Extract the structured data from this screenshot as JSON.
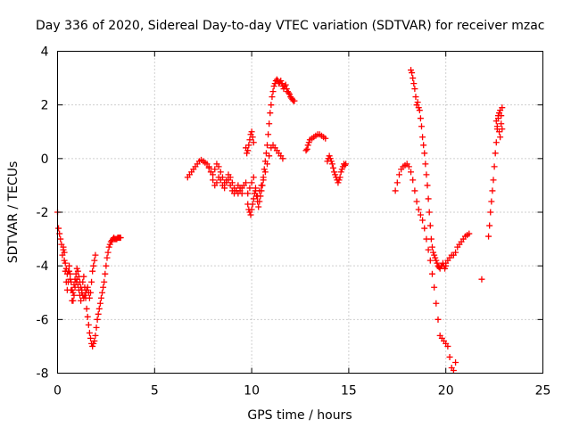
{
  "chart_data": {
    "type": "scatter",
    "title": "Day 336 of 2020, Sidereal Day-to-day VTEC variation (SDTVAR) for receiver mzac",
    "xlabel": "GPS time / hours",
    "ylabel": "SDTVAR / TECUs",
    "xlim": [
      0,
      25
    ],
    "ylim": [
      -8,
      4
    ],
    "x_ticks": [
      0,
      5,
      10,
      15,
      20,
      25
    ],
    "y_ticks": [
      -8,
      -6,
      -4,
      -2,
      0,
      2,
      4
    ],
    "x_tick_labels": [
      "0",
      "5",
      "10",
      "15",
      "20",
      "25"
    ],
    "y_tick_labels": [
      "-8",
      "-6",
      "-4",
      "-2",
      "0",
      "2",
      "4"
    ],
    "grid": true,
    "marker": "plus",
    "color": "#ff0000",
    "series": [
      {
        "x": [
          0.0,
          0.05,
          0.1,
          0.15,
          0.2,
          0.25,
          0.3,
          0.35,
          0.4,
          0.45,
          0.5,
          0.55,
          0.6,
          0.65,
          0.7,
          0.75,
          0.8,
          0.85,
          0.9,
          0.95,
          1.0,
          1.05,
          1.1,
          1.15,
          1.2,
          1.25,
          1.3,
          1.35,
          1.4,
          1.45,
          1.5,
          1.55,
          1.6,
          1.65,
          1.7,
          1.75,
          1.8,
          1.85,
          1.9,
          1.95,
          2.0,
          2.05,
          2.1,
          2.15,
          2.2,
          2.25,
          2.3,
          2.35,
          2.4,
          2.45,
          2.5,
          2.55,
          2.6,
          2.65,
          2.7,
          2.75,
          2.8,
          2.85,
          2.9,
          2.95,
          3.0,
          3.05,
          3.1,
          3.15,
          3.2,
          3.25
        ],
        "y": [
          -2.0,
          -2.6,
          -2.8,
          -3.0,
          -3.2,
          -3.6,
          -3.4,
          -3.8,
          -4.2,
          -4.6,
          -4.9,
          -4.6,
          -4.2,
          -4.5,
          -4.9,
          -5.3,
          -5.3,
          -5.1,
          -4.8,
          -4.6,
          -4.5,
          -4.7,
          -4.9,
          -5.1,
          -5.3,
          -5.0,
          -4.6,
          -4.4,
          -4.8,
          -5.2,
          -5.6,
          -5.9,
          -6.2,
          -6.5,
          -6.7,
          -6.9,
          -7.0,
          -6.9,
          -6.8,
          -6.6,
          -6.3,
          -6.0,
          -5.8,
          -5.6,
          -5.4,
          -5.2,
          -5.0,
          -4.8,
          -4.6,
          -4.3,
          -4.0,
          -3.7,
          -3.5,
          -3.3,
          -3.2,
          -3.1,
          -3.05,
          -3.0,
          -2.95,
          -3.0,
          -3.0,
          -3.0,
          -2.95,
          -2.95,
          -2.95,
          -2.95
        ]
      },
      {
        "x": [
          0.3,
          0.35,
          0.4,
          0.45,
          0.5,
          0.55,
          0.6,
          0.65,
          0.7,
          0.75,
          0.8,
          0.85,
          0.9,
          0.95,
          1.0,
          1.05,
          1.1,
          1.15,
          1.2,
          1.25,
          1.3,
          1.35,
          1.4,
          1.45,
          1.5,
          1.55,
          1.6,
          1.65,
          1.7,
          1.75,
          1.8,
          1.85,
          1.9,
          1.95
        ],
        "y": [
          -3.3,
          -3.5,
          -3.9,
          -4.1,
          -4.3,
          -4.2,
          -4.0,
          -4.3,
          -4.6,
          -4.9,
          -5.0,
          -4.7,
          -4.5,
          -4.3,
          -4.1,
          -4.2,
          -4.4,
          -4.6,
          -4.8,
          -4.9,
          -5.1,
          -5.2,
          -5.1,
          -5.0,
          -4.9,
          -4.8,
          -5.0,
          -5.2,
          -5.0,
          -4.6,
          -4.2,
          -4.0,
          -3.8,
          -3.6
        ]
      },
      {
        "x": [
          6.7,
          6.8,
          6.9,
          7.0,
          7.1,
          7.2,
          7.3,
          7.4,
          7.5,
          7.6,
          7.7,
          7.8,
          7.9,
          8.0,
          8.1,
          8.2,
          8.3,
          8.4,
          8.5,
          8.6,
          8.7,
          8.8,
          8.9,
          9.0,
          9.1,
          9.2,
          9.3,
          9.4,
          9.5,
          9.6,
          9.7
        ],
        "y": [
          -0.7,
          -0.6,
          -0.5,
          -0.4,
          -0.3,
          -0.2,
          -0.1,
          -0.05,
          -0.1,
          -0.15,
          -0.2,
          -0.35,
          -0.5,
          -0.6,
          -0.4,
          -0.2,
          -0.3,
          -0.5,
          -0.7,
          -0.9,
          -0.8,
          -0.6,
          -0.7,
          -0.9,
          -1.1,
          -1.2,
          -1.3,
          -1.2,
          -1.1,
          -1.0,
          -0.9
        ]
      },
      {
        "x": [
          7.8,
          7.9,
          8.0,
          8.1,
          8.2,
          8.3,
          8.4,
          8.5,
          8.6,
          8.7,
          8.8,
          8.9,
          9.0,
          9.1,
          9.2,
          9.3,
          9.4,
          9.5
        ],
        "y": [
          -0.3,
          -0.5,
          -0.8,
          -1.0,
          -0.9,
          -0.7,
          -0.8,
          -1.0,
          -1.1,
          -0.9,
          -0.8,
          -1.0,
          -1.2,
          -1.3,
          -1.2,
          -1.0,
          -1.1,
          -1.3
        ]
      },
      {
        "x": [
          9.8,
          9.85,
          9.9,
          9.95,
          10.0,
          10.05,
          10.1,
          10.15,
          10.2,
          10.25,
          10.3,
          10.35,
          10.4,
          10.45,
          10.5,
          10.55,
          10.6,
          10.65,
          10.7,
          10.75,
          10.8,
          10.85,
          10.9,
          10.95,
          11.0,
          11.05,
          11.1,
          11.15,
          11.2,
          11.25,
          11.3,
          11.35,
          11.4,
          11.45,
          11.5,
          11.55,
          11.6,
          11.65,
          11.7,
          11.75,
          11.8,
          11.85,
          11.9,
          11.95,
          12.0,
          12.05,
          12.1,
          12.15,
          12.2
        ],
        "y": [
          -1.7,
          -1.9,
          -2.0,
          -2.1,
          -1.9,
          -1.7,
          -1.5,
          -1.3,
          -1.2,
          -1.4,
          -1.6,
          -1.8,
          -1.6,
          -1.4,
          -1.2,
          -1.0,
          -0.7,
          -0.4,
          -0.1,
          0.2,
          0.5,
          0.9,
          1.3,
          1.7,
          2.0,
          2.3,
          2.5,
          2.7,
          2.8,
          2.9,
          2.95,
          2.9,
          2.8,
          2.85,
          2.9,
          2.8,
          2.7,
          2.6,
          2.7,
          2.75,
          2.6,
          2.5,
          2.45,
          2.4,
          2.3,
          2.25,
          2.2,
          2.15,
          2.15
        ]
      },
      {
        "x": [
          9.8,
          9.9,
          10.0,
          10.1,
          10.2,
          10.3,
          10.4,
          10.5,
          10.6,
          10.7,
          10.8,
          10.9,
          11.0,
          11.1,
          11.2,
          11.3,
          11.4,
          11.5,
          11.6
        ],
        "y": [
          -1.3,
          -1.1,
          -0.9,
          -0.7,
          -1.1,
          -1.4,
          -1.2,
          -1.0,
          -0.8,
          -0.5,
          -0.2,
          0.1,
          0.4,
          0.5,
          0.4,
          0.3,
          0.2,
          0.1,
          0.0
        ]
      },
      {
        "x": [
          9.7,
          9.75,
          9.8,
          9.85,
          9.9,
          9.95,
          10.0,
          10.05,
          10.1
        ],
        "y": [
          0.4,
          0.2,
          0.3,
          0.5,
          0.7,
          0.9,
          1.0,
          0.8,
          0.6
        ]
      },
      {
        "x": [
          12.8,
          12.85,
          12.9,
          12.95,
          13.0,
          13.1,
          13.2,
          13.3,
          13.4,
          13.5,
          13.6,
          13.7,
          13.8
        ],
        "y": [
          0.3,
          0.35,
          0.5,
          0.6,
          0.7,
          0.75,
          0.8,
          0.85,
          0.9,
          0.9,
          0.85,
          0.8,
          0.75
        ]
      },
      {
        "x": [
          13.9,
          13.95,
          14.0,
          14.05,
          14.1,
          14.15,
          14.2,
          14.25,
          14.3,
          14.35,
          14.4,
          14.45,
          14.5,
          14.55,
          14.6,
          14.65,
          14.7,
          14.75,
          14.8,
          14.85
        ],
        "y": [
          -0.1,
          0.0,
          0.1,
          0.0,
          -0.1,
          -0.2,
          -0.35,
          -0.5,
          -0.6,
          -0.7,
          -0.8,
          -0.9,
          -0.8,
          -0.7,
          -0.5,
          -0.4,
          -0.3,
          -0.2,
          -0.25,
          -0.2
        ]
      },
      {
        "x": [
          17.4,
          17.5,
          17.6,
          17.7,
          17.8,
          17.9,
          18.0,
          18.1,
          18.2,
          18.3,
          18.4,
          18.5,
          18.6,
          18.7,
          18.8,
          18.9,
          19.0,
          19.1,
          19.2,
          19.3,
          19.4,
          19.5,
          19.6,
          19.7,
          19.8,
          19.9,
          20.0,
          20.1,
          20.2,
          20.3,
          20.4,
          20.5
        ],
        "y": [
          -1.2,
          -0.9,
          -0.6,
          -0.4,
          -0.3,
          -0.25,
          -0.2,
          -0.3,
          -0.5,
          -0.8,
          -1.2,
          -1.6,
          -1.9,
          -2.1,
          -2.3,
          -2.6,
          -3.0,
          -3.4,
          -3.8,
          -4.3,
          -4.8,
          -5.4,
          -6.0,
          -6.6,
          -6.7,
          -6.8,
          -6.9,
          -7.0,
          -7.4,
          -7.8,
          -7.9,
          -7.6
        ]
      },
      {
        "x": [
          18.2,
          18.25,
          18.3,
          18.35,
          18.4,
          18.45,
          18.5,
          18.55,
          18.6,
          18.65,
          18.7,
          18.75,
          18.8,
          18.85,
          18.9,
          18.95,
          19.0,
          19.05,
          19.1,
          19.15,
          19.2,
          19.25,
          19.3,
          19.35,
          19.4,
          19.45,
          19.5,
          19.55,
          19.6,
          19.65,
          19.7,
          19.75,
          19.8,
          19.85,
          19.9,
          19.95,
          20.0
        ],
        "y": [
          3.3,
          3.2,
          3.0,
          2.8,
          2.6,
          2.3,
          2.0,
          2.1,
          1.9,
          1.8,
          1.5,
          1.2,
          0.8,
          0.5,
          0.2,
          -0.2,
          -0.6,
          -1.0,
          -1.5,
          -2.0,
          -2.5,
          -3.0,
          -3.3,
          -3.5,
          -3.6,
          -3.7,
          -3.8,
          -3.9,
          -4.0,
          -4.05,
          -4.1,
          -4.0,
          -4.0,
          -3.9,
          -4.0,
          -4.1,
          -4.0
        ]
      },
      {
        "x": [
          20.0,
          20.1,
          20.2,
          20.3,
          20.4,
          20.5,
          20.6,
          20.7,
          20.8,
          20.9,
          21.0,
          21.1,
          21.2
        ],
        "y": [
          -3.9,
          -3.8,
          -3.7,
          -3.6,
          -3.6,
          -3.5,
          -3.3,
          -3.2,
          -3.1,
          -3.0,
          -2.9,
          -2.85,
          -2.8
        ]
      },
      {
        "x": [
          21.85
        ],
        "y": [
          -4.5
        ]
      },
      {
        "x": [
          22.2,
          22.25,
          22.3,
          22.35,
          22.4,
          22.45,
          22.5,
          22.55,
          22.6,
          22.65,
          22.7,
          22.75,
          22.8,
          22.85,
          22.9
        ],
        "y": [
          -2.9,
          -2.5,
          -2.0,
          -1.6,
          -1.2,
          -0.8,
          -0.3,
          0.2,
          0.6,
          1.1,
          1.5,
          1.7,
          1.8,
          1.6,
          1.9
        ]
      },
      {
        "x": [
          22.6,
          22.65,
          22.7,
          22.75,
          22.8,
          22.85,
          22.9
        ],
        "y": [
          1.4,
          1.2,
          1.6,
          1.0,
          0.8,
          1.3,
          1.1
        ]
      }
    ]
  }
}
